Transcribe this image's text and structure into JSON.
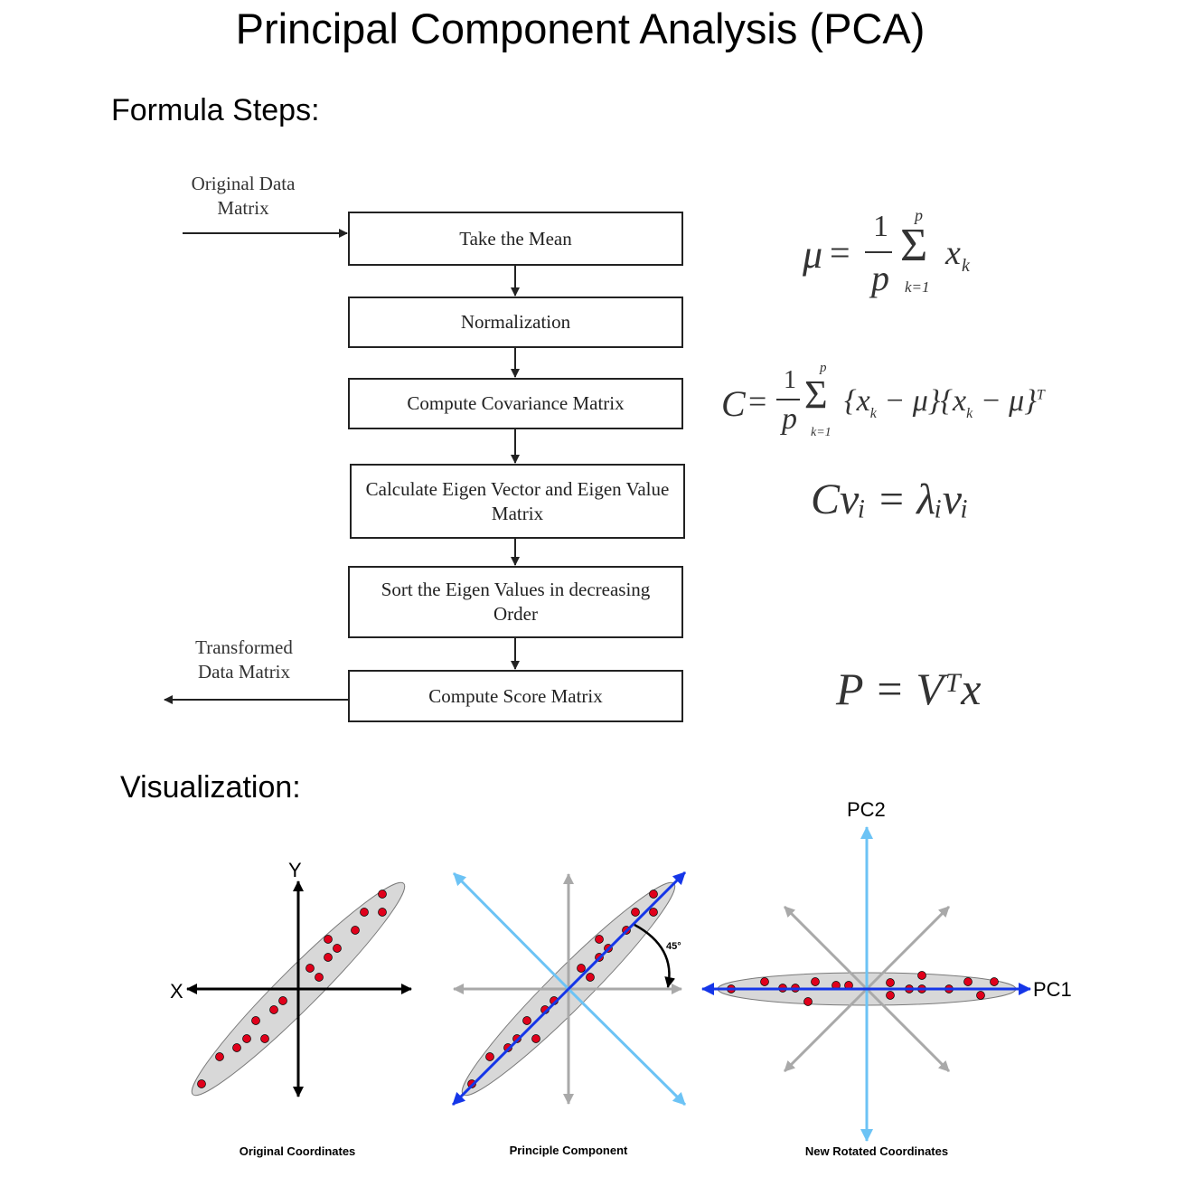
{
  "title": "Principal Component Analysis (PCA)",
  "sections": {
    "formula": "Formula Steps:",
    "visualization": "Visualization:"
  },
  "flow": {
    "input_label": "Original Data Matrix",
    "output_label": "Transformed Data Matrix",
    "steps": [
      "Take the Mean",
      "Normalization",
      "Compute Covariance Matrix",
      "Calculate Eigen Vector and Eigen Value Matrix",
      "Sort the Eigen Values in decreasing Order",
      "Compute Score Matrix"
    ]
  },
  "equations": {
    "mean": {
      "lhs": "μ",
      "frac_num": "1",
      "frac_den": "p",
      "sum_top": "p",
      "sum_bottom": "k=1",
      "term": "x",
      "sub": "k"
    },
    "covariance": {
      "lhs": "C",
      "frac_num": "1",
      "frac_den": "p",
      "sum_top": "p",
      "sum_bottom": "k=1",
      "term": "{x",
      "sub": "k",
      "mid": " − μ}{x",
      "end": " − μ}",
      "sup": "T"
    },
    "eigen": {
      "text": "Cvᵢ = λᵢvᵢ"
    },
    "score": {
      "text": "P = Vᵀx"
    }
  },
  "visualization": {
    "panels": [
      {
        "caption": "Original Coordinates",
        "x_label": "X",
        "y_label": "Y"
      },
      {
        "caption": "Principle Component",
        "angle_label": "45°"
      },
      {
        "caption": "New Rotated Coordinates",
        "pc1_label": "PC1",
        "pc2_label": "PC2"
      }
    ],
    "colors": {
      "points": "#e0001b",
      "pc_axis": "#1536e8",
      "rotated_axes": "#6cc3f5",
      "faded_axes": "#a9a9a9",
      "ellipse": "#d8d8d8"
    }
  }
}
